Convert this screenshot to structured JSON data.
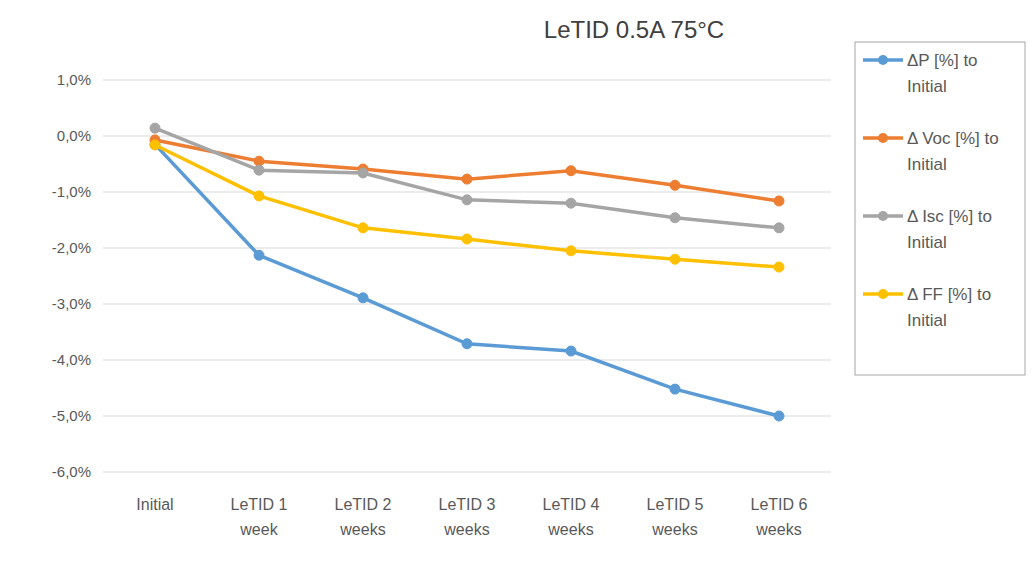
{
  "chart_data": {
    "type": "line",
    "title": "LeTID 0.5A 75°C",
    "categories": [
      "Initial",
      "LeTID 1 week",
      "LeTID 2 weeks",
      "LeTID 3 weeks",
      "LeTID 4 weeks",
      "LeTID 5 weeks",
      "LeTID 6 weeks"
    ],
    "series": [
      {
        "name": "ΔP [%] to Initial",
        "color": "#5b9bd5",
        "marker": "circle",
        "line_style": "solid",
        "values": [
          -0.15,
          -2.13,
          -2.89,
          -3.71,
          -3.84,
          -4.52,
          -5.0
        ]
      },
      {
        "name": "Δ Voc [%] to Initial",
        "color": "#ed7d31",
        "marker": "circle",
        "line_style": "solid",
        "values": [
          -0.07,
          -0.45,
          -0.59,
          -0.77,
          -0.62,
          -0.88,
          -1.16
        ]
      },
      {
        "name": "Δ Isc [%] to Initial",
        "color": "#a5a5a5",
        "marker": "circle",
        "line_style": "solid",
        "values": [
          0.14,
          -0.61,
          -0.66,
          -1.14,
          -1.2,
          -1.46,
          -1.64
        ]
      },
      {
        "name": "Δ FF [%] to Initial",
        "color": "#ffc000",
        "marker": "circle",
        "line_style": "solid",
        "values": [
          -0.16,
          -1.07,
          -1.64,
          -1.84,
          -2.05,
          -2.2,
          -2.34
        ]
      }
    ],
    "ylim": [
      -6,
      1
    ],
    "yticks": [
      {
        "value": 1,
        "label": "1,0%"
      },
      {
        "value": 0,
        "label": "0,0%"
      },
      {
        "value": -1,
        "label": "-1,0%"
      },
      {
        "value": -2,
        "label": "-2,0%"
      },
      {
        "value": -3,
        "label": "-3,0%"
      },
      {
        "value": -4,
        "label": "-4,0%"
      },
      {
        "value": -5,
        "label": "-5,0%"
      },
      {
        "value": -6,
        "label": "-6,0%"
      }
    ],
    "grid": true,
    "legend": "right"
  }
}
